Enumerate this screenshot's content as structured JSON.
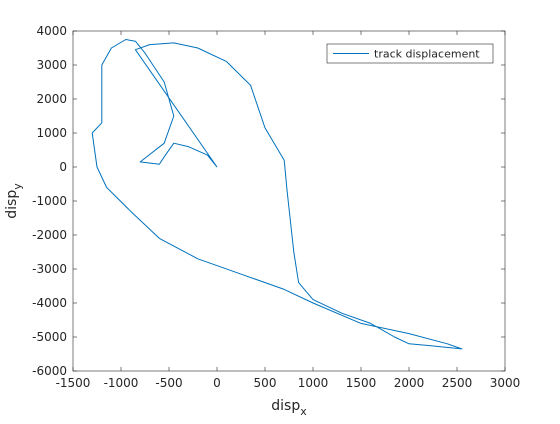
{
  "chart_data": {
    "type": "line",
    "xlabel": {
      "text": "disp",
      "sub": "x"
    },
    "ylabel": {
      "text": "disp",
      "sub": "y"
    },
    "xlim": [
      -1500,
      3000
    ],
    "xticks": [
      -1500,
      -1000,
      -500,
      0,
      500,
      1000,
      1500,
      2000,
      2500,
      3000
    ],
    "ylim": [
      -6000,
      4000
    ],
    "yticks": [
      -6000,
      -5000,
      -4000,
      -3000,
      -2000,
      -1000,
      0,
      1000,
      2000,
      3000,
      4000
    ],
    "legend": "northeast",
    "grid": false,
    "series": [
      {
        "name": "track displacement",
        "color": "#0072bd",
        "x": [
          0,
          -850,
          -700,
          -450,
          -200,
          100,
          350,
          500,
          700,
          730,
          800,
          850,
          1000,
          1300,
          1600,
          1850,
          2000,
          2200,
          2550,
          2400,
          2000,
          1500,
          1000,
          700,
          300,
          -200,
          -600,
          -900,
          -1150,
          -1250,
          -1300,
          -1200,
          -1200,
          -1200,
          -1100,
          -950,
          -850,
          -750,
          -550,
          -450,
          -550,
          -800,
          -600,
          -550,
          -450,
          -300,
          -100,
          0
        ],
        "values": [
          0,
          3450,
          3600,
          3650,
          3500,
          3100,
          2400,
          1150,
          200,
          -700,
          -2500,
          -3400,
          -3900,
          -4300,
          -4600,
          -5000,
          -5200,
          -5250,
          -5350,
          -5200,
          -4900,
          -4600,
          -4000,
          -3600,
          -3200,
          -2700,
          -2100,
          -1300,
          -600,
          0,
          1000,
          1300,
          2000,
          3000,
          3500,
          3750,
          3700,
          3350,
          2500,
          1500,
          700,
          150,
          80,
          300,
          700,
          600,
          350,
          0
        ]
      }
    ]
  }
}
